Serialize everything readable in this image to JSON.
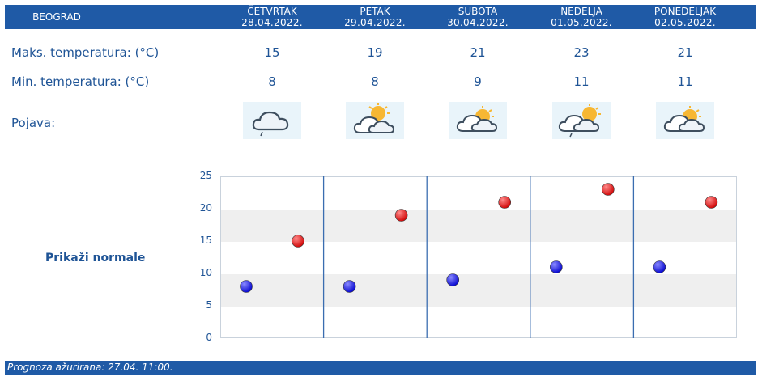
{
  "header": {
    "city": "BEOGRAD",
    "days": [
      {
        "day": "ČETVRTAK",
        "date": "28.04.2022."
      },
      {
        "day": "PETAK",
        "date": "29.04.2022."
      },
      {
        "day": "SUBOTA",
        "date": "30.04.2022."
      },
      {
        "day": "NEDELJA",
        "date": "01.05.2022."
      },
      {
        "day": "PONEDELJAK",
        "date": "02.05.2022."
      }
    ]
  },
  "rows": {
    "max_label": "Maks. temperatura: (°C)",
    "min_label": "Min. temperatura: (°C)",
    "phenomenon_label": "Pojava:",
    "max": [
      "15",
      "19",
      "21",
      "23",
      "21"
    ],
    "min": [
      "8",
      "8",
      "9",
      "11",
      "11"
    ],
    "icons": [
      "cloud-rain-icon",
      "partly-cloudy-icon",
      "partly-cloudy-icon",
      "partly-cloudy-rain-icon",
      "partly-cloudy-icon"
    ]
  },
  "link_label": "Prikaži normale",
  "chart_data": {
    "type": "scatter",
    "categories": [
      "ČETVRTAK",
      "PETAK",
      "SUBOTA",
      "NEDELJA",
      "PONEDELJAK"
    ],
    "series": [
      {
        "values": [
          8,
          8,
          9,
          11,
          11
        ],
        "color": "#0a0ad0"
      },
      {
        "values": [
          15,
          19,
          21,
          23,
          21
        ],
        "color": "#d20a0a"
      }
    ],
    "ylim": [
      0,
      25
    ],
    "yticks": [
      "0",
      "5",
      "10",
      "15",
      "20",
      "25"
    ],
    "grid": true
  },
  "footer": {
    "text": "Prognoza ažurirana:  27.04. 11:00."
  },
  "colors": {
    "header_bg": "#1f5aa6",
    "text": "#1f5496"
  }
}
